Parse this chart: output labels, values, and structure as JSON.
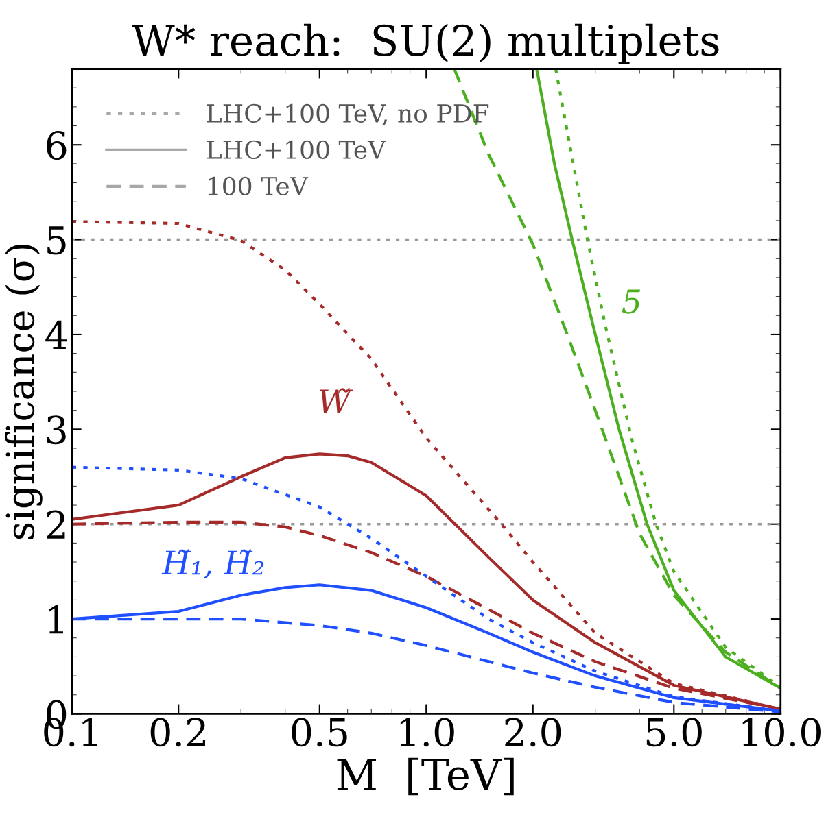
{
  "chart_data": {
    "type": "line",
    "title": "W* reach:  SU(2) multiplets",
    "xlabel": "M  [TeV]",
    "ylabel": "significance (σ)",
    "log": "x",
    "xlim": [
      0.1,
      10
    ],
    "xticks": [
      0.1,
      0.2,
      0.5,
      {
        "value": 1,
        "label": "1.0"
      },
      {
        "value": 2,
        "label": "2.0"
      },
      {
        "value": 5,
        "label": "5.0"
      },
      {
        "value": 10,
        "label": "10.0"
      }
    ],
    "ylim": [
      0,
      6.8
    ],
    "yticks": [
      0,
      1,
      2,
      3,
      4,
      5,
      6
    ],
    "grid": false,
    "legend": "top left",
    "ref_lines": [
      {
        "axis": "y",
        "value": 5,
        "color": "#999999",
        "line_style": "dotted"
      },
      {
        "axis": "y",
        "value": 2,
        "color": "#999999",
        "line_style": "dotted"
      }
    ],
    "series": [
      {
        "name": "LHC+100 TeV, no PDF",
        "color": "#a8a8a8",
        "line_style": "dotted"
      },
      {
        "name": "LHC+100 TeV",
        "color": "#a8a8a8",
        "line_style": "solid"
      },
      {
        "name": "100 TeV",
        "color": "#a8a8a8",
        "line_style": "dashed"
      },
      {
        "color": "#a52a2a",
        "line_style": "dotted",
        "x": [
          0.1,
          0.2,
          0.3,
          0.4,
          0.5,
          0.7,
          1.0,
          1.63,
          2.0,
          3.0,
          5.0,
          10
        ],
        "values": [
          5.19,
          5.17,
          4.99,
          4.68,
          4.32,
          3.74,
          2.91,
          2.0,
          1.6,
          0.85,
          0.32,
          0.05
        ]
      },
      {
        "name": "W̃",
        "color": "#a52a2a",
        "line_style": "solid",
        "x": [
          0.1,
          0.2,
          0.3,
          0.4,
          0.5,
          0.6,
          0.7,
          1.0,
          1.5,
          2.0,
          3.0,
          5.0,
          10
        ],
        "values": [
          2.05,
          2.2,
          2.5,
          2.7,
          2.74,
          2.72,
          2.65,
          2.3,
          1.65,
          1.2,
          0.75,
          0.3,
          0.05
        ]
      },
      {
        "color": "#a52a2a",
        "line_style": "dashed",
        "x": [
          0.1,
          0.2,
          0.3,
          0.4,
          0.5,
          0.7,
          1.0,
          1.5,
          2.0,
          3.0,
          5.0,
          10
        ],
        "values": [
          2.0,
          2.02,
          2.02,
          1.97,
          1.88,
          1.7,
          1.45,
          1.1,
          0.85,
          0.55,
          0.27,
          0.05
        ]
      },
      {
        "color": "#1f4fff",
        "line_style": "dotted",
        "x": [
          0.1,
          0.2,
          0.3,
          0.5,
          0.7,
          1.0,
          1.5,
          2.0,
          3.0,
          5.0,
          10
        ],
        "values": [
          2.6,
          2.57,
          2.48,
          2.18,
          1.85,
          1.45,
          1.0,
          0.75,
          0.45,
          0.18,
          0.03
        ]
      },
      {
        "name": "H̃₁, H̃₂",
        "color": "#1f4fff",
        "line_style": "solid",
        "x": [
          0.1,
          0.2,
          0.3,
          0.4,
          0.5,
          0.7,
          1.0,
          1.5,
          2.0,
          3.0,
          5.0,
          10
        ],
        "values": [
          1.0,
          1.08,
          1.25,
          1.33,
          1.36,
          1.3,
          1.12,
          0.85,
          0.65,
          0.4,
          0.17,
          0.03
        ]
      },
      {
        "color": "#1f4fff",
        "line_style": "dashed",
        "x": [
          0.1,
          0.2,
          0.3,
          0.5,
          0.7,
          1.0,
          1.5,
          2.0,
          3.0,
          5.0,
          10
        ],
        "values": [
          1.0,
          1.0,
          1.0,
          0.93,
          0.85,
          0.72,
          0.55,
          0.43,
          0.28,
          0.12,
          0.02
        ]
      },
      {
        "color": "#4caf1f",
        "line_style": "dashed",
        "x": [
          1.2,
          1.5,
          2.0,
          2.5,
          3.0,
          4.0,
          5.0,
          7.0,
          10
        ],
        "values": [
          6.8,
          5.9,
          4.95,
          4.0,
          3.2,
          1.9,
          1.25,
          0.65,
          0.27
        ]
      },
      {
        "name": "5",
        "color": "#4caf1f",
        "line_style": "solid",
        "x": [
          2.05,
          2.3,
          2.6,
          3.0,
          3.5,
          4.2,
          5.0,
          7.0,
          10
        ],
        "values": [
          6.8,
          5.8,
          4.95,
          4.0,
          3.0,
          2.0,
          1.3,
          0.6,
          0.27
        ]
      },
      {
        "color": "#4caf1f",
        "line_style": "dotted",
        "x": [
          2.32,
          2.6,
          2.85,
          3.2,
          3.8,
          4.45,
          5.0,
          7.0,
          10
        ],
        "values": [
          6.8,
          5.8,
          5.0,
          4.1,
          2.9,
          2.0,
          1.5,
          0.7,
          0.28
        ]
      }
    ]
  }
}
